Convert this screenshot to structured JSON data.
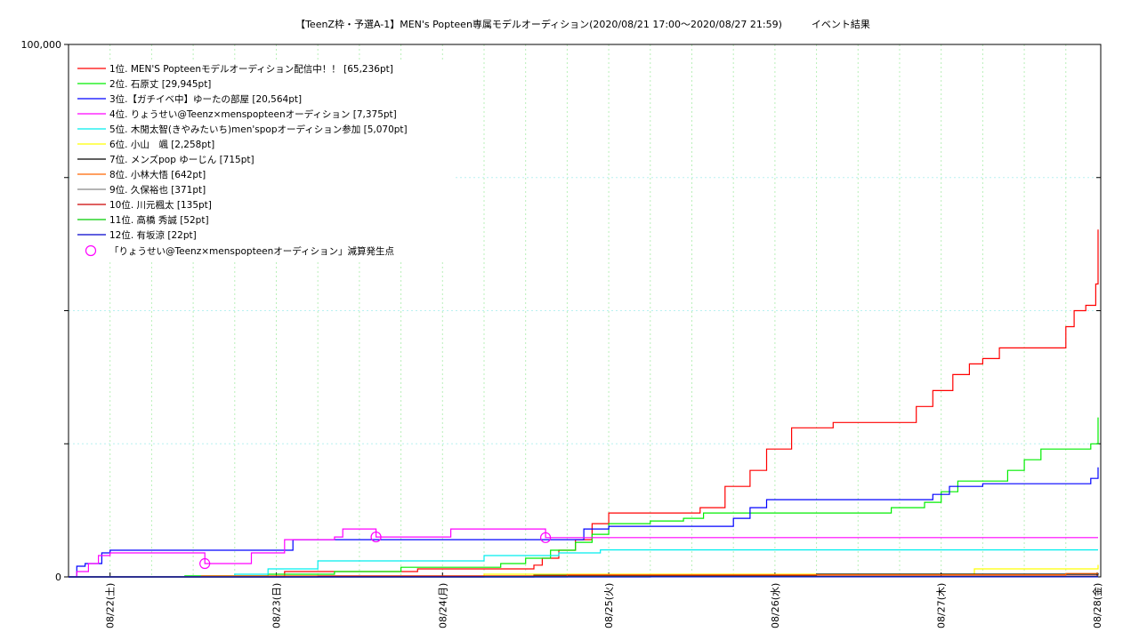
{
  "chart_data": {
    "type": "line",
    "title": "【TeenZ枠・予選A-1】MEN's Popteen専属モデルオーディション(2020/08/21 17:00～2020/08/27 21:59)　　　イベント結果",
    "ylim": [
      0,
      100000
    ],
    "y_ticks": [
      "0",
      "100,000"
    ],
    "x_range_days": [
      0,
      6.21
    ],
    "x_tick_labels": [
      "08/22(土)",
      "08/23(日)",
      "08/24(月)",
      "08/25(火)",
      "08/26(水)",
      "08/27(木)",
      "08/28(金)"
    ],
    "x_tick_days": [
      0.25,
      1.25,
      2.25,
      3.25,
      4.25,
      5.25,
      6.25
    ],
    "grid": true,
    "legend_position": "top-left",
    "series": [
      {
        "name": "1位. MEN'S Popteenモデルオーディション配信中！！ [65,236pt]",
        "color": "#ff0000",
        "points": [
          [
            0,
            0
          ],
          [
            1.0,
            0
          ],
          [
            1.3,
            1000
          ],
          [
            2.1,
            1500
          ],
          [
            2.8,
            2200
          ],
          [
            2.85,
            3500
          ],
          [
            2.95,
            5000
          ],
          [
            3.05,
            7000
          ],
          [
            3.15,
            10000
          ],
          [
            3.25,
            12000
          ],
          [
            3.8,
            13000
          ],
          [
            3.95,
            17000
          ],
          [
            4.1,
            20000
          ],
          [
            4.2,
            24000
          ],
          [
            4.35,
            28000
          ],
          [
            4.6,
            29000
          ],
          [
            5.05,
            29000
          ],
          [
            5.1,
            32000
          ],
          [
            5.2,
            35000
          ],
          [
            5.32,
            38000
          ],
          [
            5.42,
            40000
          ],
          [
            5.5,
            41000
          ],
          [
            5.6,
            43000
          ],
          [
            5.9,
            43000
          ],
          [
            6.0,
            47000
          ],
          [
            6.05,
            50000
          ],
          [
            6.12,
            51000
          ],
          [
            6.18,
            55000
          ],
          [
            6.25,
            57000
          ],
          [
            6.32,
            58000
          ],
          [
            6.38,
            60000
          ],
          [
            6.42,
            65236
          ],
          [
            6.5,
            65236
          ]
        ]
      },
      {
        "name": "2位. 石原丈 [29,945pt]",
        "color": "#00ee00",
        "points": [
          [
            0,
            0
          ],
          [
            0.7,
            200
          ],
          [
            1.2,
            500
          ],
          [
            1.6,
            1000
          ],
          [
            2.0,
            1800
          ],
          [
            2.6,
            2500
          ],
          [
            2.75,
            3500
          ],
          [
            2.9,
            5000
          ],
          [
            3.05,
            6500
          ],
          [
            3.15,
            8000
          ],
          [
            3.25,
            10000
          ],
          [
            3.5,
            10500
          ],
          [
            3.7,
            11000
          ],
          [
            3.82,
            12000
          ],
          [
            4.3,
            12000
          ],
          [
            4.95,
            13000
          ],
          [
            5.15,
            14000
          ],
          [
            5.25,
            16000
          ],
          [
            5.35,
            18000
          ],
          [
            5.55,
            18000
          ],
          [
            5.65,
            20000
          ],
          [
            5.75,
            22000
          ],
          [
            5.85,
            24000
          ],
          [
            6.05,
            24000
          ],
          [
            6.15,
            25000
          ],
          [
            6.4,
            26000
          ],
          [
            6.48,
            29945
          ],
          [
            6.5,
            29945
          ]
        ]
      },
      {
        "name": "3位.【ガチイベ中】ゆーたの部屋 [20,564pt]",
        "color": "#0000ff",
        "points": [
          [
            0,
            0
          ],
          [
            0.05,
            2000
          ],
          [
            0.1,
            2500
          ],
          [
            0.2,
            4500
          ],
          [
            0.25,
            5000
          ],
          [
            1.25,
            5000
          ],
          [
            1.35,
            7000
          ],
          [
            2.0,
            7000
          ],
          [
            3.05,
            7000
          ],
          [
            3.1,
            9000
          ],
          [
            3.25,
            9500
          ],
          [
            3.8,
            9500
          ],
          [
            4.0,
            11000
          ],
          [
            4.1,
            13000
          ],
          [
            4.2,
            14500
          ],
          [
            5.1,
            14500
          ],
          [
            5.2,
            15500
          ],
          [
            5.3,
            17000
          ],
          [
            5.5,
            17500
          ],
          [
            6.05,
            17500
          ],
          [
            6.15,
            18500
          ],
          [
            6.35,
            19000
          ],
          [
            6.4,
            20564
          ],
          [
            6.5,
            20564
          ]
        ]
      },
      {
        "name": "4位. りょうせい@Teenz×menspopteenオーディション [7,375pt]",
        "color": "#ff00ff",
        "points": [
          [
            0,
            0
          ],
          [
            0.05,
            1000
          ],
          [
            0.12,
            2500
          ],
          [
            0.18,
            4000
          ],
          [
            0.25,
            4500
          ],
          [
            0.8,
            4500
          ],
          [
            0.82,
            2500
          ],
          [
            1.0,
            2500
          ],
          [
            1.1,
            4500
          ],
          [
            1.3,
            7000
          ],
          [
            1.6,
            7500
          ],
          [
            1.65,
            9000
          ],
          [
            1.8,
            9000
          ],
          [
            1.85,
            7500
          ],
          [
            2.2,
            7500
          ],
          [
            2.3,
            9000
          ],
          [
            2.85,
            9000
          ],
          [
            2.87,
            7375
          ],
          [
            6.5,
            7375
          ]
        ]
      },
      {
        "name": "5位. 木閒太智(きやみたいち)men'spopオーディション参加 [5,070pt]",
        "color": "#00eeee",
        "points": [
          [
            0,
            0
          ],
          [
            1.0,
            500
          ],
          [
            1.2,
            1500
          ],
          [
            1.5,
            3000
          ],
          [
            2.0,
            3000
          ],
          [
            2.5,
            4000
          ],
          [
            2.95,
            4500
          ],
          [
            3.2,
            5070
          ],
          [
            6.5,
            5070
          ]
        ]
      },
      {
        "name": "6位. 小山　颯 [2,258pt]",
        "color": "#ffff00",
        "points": [
          [
            0,
            0
          ],
          [
            2.5,
            500
          ],
          [
            5.3,
            500
          ],
          [
            5.45,
            1500
          ],
          [
            6.4,
            2258
          ],
          [
            6.5,
            2258
          ]
        ]
      },
      {
        "name": "7位. メンズpop ゆーじん [715pt]",
        "color": "#000000",
        "points": [
          [
            0,
            0
          ],
          [
            2.8,
            300
          ],
          [
            4.5,
            500
          ],
          [
            6.45,
            715
          ],
          [
            6.5,
            715
          ]
        ]
      },
      {
        "name": "8位. 小林大悟 [642pt]",
        "color": "#ff6600",
        "points": [
          [
            0,
            0
          ],
          [
            0.8,
            200
          ],
          [
            3.0,
            400
          ],
          [
            6.0,
            642
          ],
          [
            6.5,
            642
          ]
        ]
      },
      {
        "name": "9位. 久保裕也 [371pt]",
        "color": "#888888",
        "points": [
          [
            0,
            0
          ],
          [
            3.0,
            150
          ],
          [
            6.2,
            371
          ],
          [
            6.5,
            371
          ]
        ]
      },
      {
        "name": "10位. 川元楓太 [135pt]",
        "color": "#cc0000",
        "points": [
          [
            0,
            0
          ],
          [
            1.5,
            135
          ],
          [
            6.5,
            135
          ]
        ]
      },
      {
        "name": "11位. 高橋 秀誠 [52pt]",
        "color": "#00cc00",
        "points": [
          [
            0,
            0
          ],
          [
            2.5,
            52
          ],
          [
            6.5,
            52
          ]
        ]
      },
      {
        "name": "12位. 有坂涼 [22pt]",
        "color": "#0000cc",
        "points": [
          [
            0,
            0
          ],
          [
            3.5,
            22
          ],
          [
            6.5,
            22
          ]
        ]
      }
    ],
    "markers": {
      "name": "「りょうせい@Teenz×menspopteenオーディション」減算発生点",
      "color": "#ff00ff",
      "points": [
        [
          0.82,
          2500
        ],
        [
          1.85,
          7500
        ],
        [
          2.87,
          7375
        ]
      ]
    }
  }
}
